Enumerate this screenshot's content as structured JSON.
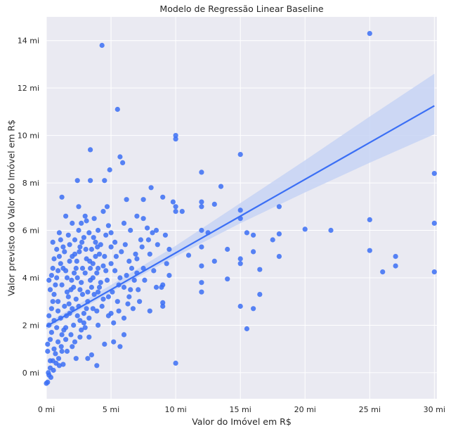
{
  "chart_data": {
    "type": "scatter",
    "title": "Modelo de Regressão Linear Baseline",
    "xlabel": "Valor do Imóvel em R$",
    "ylabel": "Valor previsto do Valor do Imóvel em R$",
    "xlim": [
      0,
      30.2
    ],
    "ylim": [
      -1.1,
      15.0
    ],
    "x_ticks": [
      {
        "value": 0,
        "label": "0 mi"
      },
      {
        "value": 5,
        "label": "5 mi"
      },
      {
        "value": 10,
        "label": "10 mi"
      },
      {
        "value": 15,
        "label": "15 mi"
      },
      {
        "value": 20,
        "label": "20 mi"
      },
      {
        "value": 25,
        "label": "25 mi"
      },
      {
        "value": 30,
        "label": "30 mi"
      }
    ],
    "y_ticks": [
      {
        "value": 0,
        "label": "0 mi"
      },
      {
        "value": 2,
        "label": "2 mi"
      },
      {
        "value": 4,
        "label": "4 mi"
      },
      {
        "value": 6,
        "label": "6 mi"
      },
      {
        "value": 8,
        "label": "8 mi"
      },
      {
        "value": 10,
        "label": "10 mi"
      },
      {
        "value": 12,
        "label": "12 mi"
      },
      {
        "value": 14,
        "label": "14 mi"
      }
    ],
    "grid": true,
    "background": "#eaeaf2",
    "point_color": "#3b6ff5",
    "line_color": "#3b6ff5",
    "band_color": "#c7d3f5",
    "regression_line": {
      "x0": 0,
      "y0": 1.95,
      "x1": 30,
      "y1": 11.25
    },
    "confidence_band": {
      "x": [
        0,
        5,
        10,
        15,
        20,
        25,
        30
      ],
      "lower": [
        1.82,
        3.4,
        4.9,
        6.3,
        7.6,
        8.85,
        10.05
      ],
      "upper": [
        2.08,
        3.7,
        5.35,
        7.15,
        8.95,
        10.8,
        12.6
      ]
    },
    "points": [
      [
        4.3,
        13.8
      ],
      [
        5.5,
        11.1
      ],
      [
        3.4,
        9.4
      ],
      [
        5.7,
        9.1
      ],
      [
        5.9,
        8.85
      ],
      [
        2.4,
        8.1
      ],
      [
        3.4,
        8.1
      ],
      [
        4.5,
        8.1
      ],
      [
        4.9,
        8.55
      ],
      [
        1.2,
        7.4
      ],
      [
        2.5,
        7.0
      ],
      [
        3.1,
        6.4
      ],
      [
        4.7,
        7.0
      ],
      [
        4.4,
        6.8
      ],
      [
        6.2,
        7.3
      ],
      [
        8.1,
        7.8
      ],
      [
        7.5,
        7.3
      ],
      [
        9.0,
        7.4
      ],
      [
        9.8,
        7.2
      ],
      [
        10.0,
        10.0
      ],
      [
        10.0,
        9.85
      ],
      [
        10.0,
        7.0
      ],
      [
        10.0,
        6.8
      ],
      [
        10.5,
        6.8
      ],
      [
        12.0,
        8.45
      ],
      [
        12.0,
        7.2
      ],
      [
        12.0,
        7.0
      ],
      [
        12.0,
        6.0
      ],
      [
        12.0,
        5.3
      ],
      [
        12.0,
        4.5
      ],
      [
        12.0,
        3.8
      ],
      [
        12.0,
        3.4
      ],
      [
        13.0,
        7.1
      ],
      [
        13.5,
        7.85
      ],
      [
        12.5,
        5.9
      ],
      [
        13.0,
        4.7
      ],
      [
        14.0,
        5.2
      ],
      [
        14.0,
        3.95
      ],
      [
        15.0,
        9.2
      ],
      [
        15.0,
        6.85
      ],
      [
        15.0,
        6.5
      ],
      [
        15.0,
        4.8
      ],
      [
        15.0,
        4.6
      ],
      [
        15.0,
        2.8
      ],
      [
        15.5,
        5.9
      ],
      [
        15.5,
        1.85
      ],
      [
        16.0,
        5.8
      ],
      [
        16.0,
        5.1
      ],
      [
        16.0,
        2.7
      ],
      [
        16.5,
        4.35
      ],
      [
        16.5,
        3.3
      ],
      [
        17.5,
        5.6
      ],
      [
        18.0,
        7.0
      ],
      [
        18.0,
        5.85
      ],
      [
        18.0,
        4.9
      ],
      [
        20.0,
        6.05
      ],
      [
        22.0,
        6.0
      ],
      [
        25.0,
        14.3
      ],
      [
        25.0,
        6.45
      ],
      [
        25.0,
        5.15
      ],
      [
        26.0,
        4.25
      ],
      [
        27.0,
        4.9
      ],
      [
        27.0,
        4.5
      ],
      [
        30.0,
        8.4
      ],
      [
        30.0,
        6.3
      ],
      [
        30.0,
        4.25
      ],
      [
        10.0,
        0.4
      ],
      [
        11.0,
        4.95
      ],
      [
        9.5,
        4.1
      ],
      [
        9.0,
        3.7
      ],
      [
        9.0,
        2.95
      ],
      [
        9.0,
        2.8
      ],
      [
        8.0,
        2.6
      ],
      [
        8.5,
        3.6
      ],
      [
        8.9,
        3.6
      ],
      [
        9.5,
        5.2
      ],
      [
        9.2,
        5.8
      ],
      [
        8.5,
        6.0
      ],
      [
        7.5,
        6.5
      ],
      [
        7.0,
        6.6
      ],
      [
        6.0,
        6.3
      ],
      [
        6.5,
        6.0
      ],
      [
        8.0,
        5.0
      ],
      [
        7.5,
        4.4
      ],
      [
        7.0,
        4.2
      ],
      [
        6.5,
        3.5
      ],
      [
        6.3,
        2.9
      ],
      [
        6.0,
        2.3
      ],
      [
        6.0,
        1.6
      ],
      [
        5.7,
        1.1
      ],
      [
        5.2,
        1.3
      ],
      [
        4.5,
        1.2
      ],
      [
        3.9,
        0.3
      ],
      [
        3.5,
        0.75
      ],
      [
        3.2,
        0.6
      ],
      [
        4.0,
        2.0
      ],
      [
        5.0,
        2.5
      ],
      [
        5.5,
        3.0
      ],
      [
        6.8,
        3.9
      ],
      [
        7.2,
        3.0
      ],
      [
        5.3,
        5.5
      ],
      [
        5.0,
        5.3
      ],
      [
        4.8,
        6.2
      ],
      [
        4.0,
        6.0
      ],
      [
        3.7,
        6.5
      ],
      [
        3.0,
        6.6
      ],
      [
        2.7,
        6.3
      ],
      [
        2.5,
        6.0
      ],
      [
        2.2,
        5.6
      ],
      [
        1.8,
        5.4
      ],
      [
        1.0,
        5.9
      ],
      [
        1.5,
        6.6
      ],
      [
        2.0,
        6.3
      ],
      [
        0.6,
        4.8
      ],
      [
        0.4,
        4.1
      ],
      [
        0.3,
        3.5
      ],
      [
        0.5,
        3.0
      ],
      [
        0.2,
        2.4
      ],
      [
        0.3,
        1.4
      ],
      [
        0.1,
        0.9
      ],
      [
        0.0,
        -0.45
      ],
      [
        0.1,
        -0.4
      ],
      [
        0.2,
        -0.1
      ],
      [
        0.3,
        0.2
      ],
      [
        0.5,
        0.5
      ],
      [
        0.7,
        0.8
      ],
      [
        1.0,
        0.3
      ],
      [
        1.3,
        0.35
      ],
      [
        1.6,
        0.9
      ],
      [
        2.0,
        1.1
      ],
      [
        2.3,
        0.6
      ],
      [
        2.6,
        1.5
      ],
      [
        3.0,
        1.9
      ],
      [
        3.3,
        2.3
      ],
      [
        3.6,
        2.7
      ],
      [
        4.0,
        3.4
      ],
      [
        4.2,
        3.8
      ],
      [
        4.6,
        4.3
      ],
      [
        5.0,
        4.6
      ],
      [
        5.4,
        4.9
      ],
      [
        5.8,
        5.1
      ],
      [
        6.1,
        5.4
      ],
      [
        6.4,
        4.7
      ],
      [
        6.9,
        5.0
      ],
      [
        7.3,
        5.6
      ],
      [
        7.8,
        6.1
      ],
      [
        8.2,
        5.9
      ],
      [
        8.6,
        5.4
      ],
      [
        9.3,
        4.6
      ],
      [
        0.8,
        1.9
      ],
      [
        1.1,
        2.3
      ],
      [
        1.4,
        2.8
      ],
      [
        1.7,
        3.2
      ],
      [
        2.1,
        3.6
      ],
      [
        2.4,
        4.0
      ],
      [
        2.8,
        4.4
      ],
      [
        3.1,
        4.8
      ],
      [
        3.5,
        5.2
      ],
      [
        3.8,
        5.5
      ],
      [
        4.1,
        5.0
      ],
      [
        4.4,
        4.5
      ],
      [
        4.7,
        3.9
      ],
      [
        5.1,
        3.4
      ],
      [
        5.6,
        3.7
      ],
      [
        6.2,
        4.1
      ],
      [
        6.6,
        4.4
      ],
      [
        7.1,
        3.5
      ],
      [
        7.6,
        3.9
      ],
      [
        8.3,
        4.3
      ],
      [
        0.9,
        3.0
      ],
      [
        1.2,
        3.7
      ],
      [
        1.5,
        4.3
      ],
      [
        1.8,
        4.7
      ],
      [
        2.2,
        5.0
      ],
      [
        2.6,
        5.3
      ],
      [
        2.9,
        5.7
      ],
      [
        3.3,
        5.9
      ],
      [
        3.6,
        4.6
      ],
      [
        3.9,
        4.2
      ],
      [
        0.4,
        1.7
      ],
      [
        0.6,
        2.2
      ],
      [
        0.9,
        2.6
      ],
      [
        1.2,
        1.6
      ],
      [
        1.5,
        1.9
      ],
      [
        1.8,
        2.5
      ],
      [
        2.1,
        2.0
      ],
      [
        2.5,
        2.8
      ],
      [
        2.8,
        3.3
      ],
      [
        3.2,
        3.0
      ],
      [
        3.5,
        3.6
      ],
      [
        3.9,
        2.6
      ],
      [
        4.3,
        2.8
      ],
      [
        4.8,
        3.2
      ],
      [
        5.2,
        2.1
      ],
      [
        5.6,
        2.6
      ],
      [
        0.2,
        3.9
      ],
      [
        0.5,
        4.4
      ],
      [
        0.8,
        4.0
      ],
      [
        1.1,
        4.6
      ],
      [
        1.4,
        5.1
      ],
      [
        1.7,
        5.8
      ],
      [
        2.0,
        4.9
      ],
      [
        2.3,
        4.4
      ],
      [
        2.7,
        3.8
      ],
      [
        3.0,
        4.2
      ],
      [
        3.4,
        3.9
      ],
      [
        3.7,
        3.3
      ],
      [
        4.1,
        3.6
      ],
      [
        4.5,
        4.9
      ],
      [
        0.3,
        0.5
      ],
      [
        0.6,
        1.0
      ],
      [
        0.9,
        1.3
      ],
      [
        1.2,
        0.9
      ],
      [
        1.5,
        1.4
      ],
      [
        1.9,
        1.6
      ],
      [
        2.2,
        1.3
      ],
      [
        2.6,
        2.2
      ],
      [
        2.9,
        2.5
      ],
      [
        3.3,
        1.5
      ],
      [
        0.1,
        1.2
      ],
      [
        0.2,
        2.0
      ],
      [
        0.4,
        2.7
      ],
      [
        0.6,
        3.3
      ],
      [
        0.7,
        3.7
      ],
      [
        0.9,
        4.3
      ],
      [
        1.0,
        4.9
      ],
      [
        1.3,
        5.3
      ],
      [
        1.6,
        4.0
      ],
      [
        1.9,
        3.5
      ],
      [
        2.4,
        2.4
      ],
      [
        2.7,
        1.8
      ],
      [
        3.1,
        2.7
      ],
      [
        3.4,
        4.4
      ],
      [
        3.8,
        4.9
      ],
      [
        4.2,
        5.4
      ],
      [
        4.6,
        5.8
      ],
      [
        5.0,
        5.9
      ],
      [
        5.3,
        4.3
      ],
      [
        5.7,
        4.0
      ],
      [
        6.0,
        3.6
      ],
      [
        6.4,
        3.2
      ],
      [
        6.7,
        2.7
      ],
      [
        7.0,
        4.8
      ],
      [
        7.4,
        5.3
      ],
      [
        7.9,
        5.6
      ],
      [
        0.5,
        5.5
      ],
      [
        0.8,
        5.2
      ],
      [
        1.1,
        5.6
      ],
      [
        1.3,
        4.4
      ],
      [
        1.6,
        3.4
      ],
      [
        2.0,
        2.7
      ],
      [
        2.3,
        3.1
      ],
      [
        2.6,
        3.5
      ],
      [
        2.9,
        2.1
      ],
      [
        3.2,
        3.4
      ],
      [
        3.6,
        4.0
      ],
      [
        4.0,
        4.4
      ],
      [
        4.4,
        3.1
      ],
      [
        4.8,
        2.4
      ],
      [
        0.15,
        0.0
      ],
      [
        0.35,
        -0.2
      ],
      [
        0.55,
        0.1
      ],
      [
        0.75,
        0.4
      ],
      [
        0.95,
        0.6
      ],
      [
        1.15,
        1.1
      ],
      [
        1.35,
        1.8
      ],
      [
        1.55,
        2.4
      ],
      [
        1.75,
        2.9
      ],
      [
        1.95,
        3.9
      ],
      [
        2.15,
        4.2
      ],
      [
        2.35,
        4.7
      ],
      [
        2.55,
        5.1
      ],
      [
        2.75,
        5.5
      ],
      [
        3.05,
        5.2
      ],
      [
        3.35,
        4.7
      ],
      [
        3.65,
        5.7
      ],
      [
        3.95,
        5.3
      ]
    ]
  }
}
